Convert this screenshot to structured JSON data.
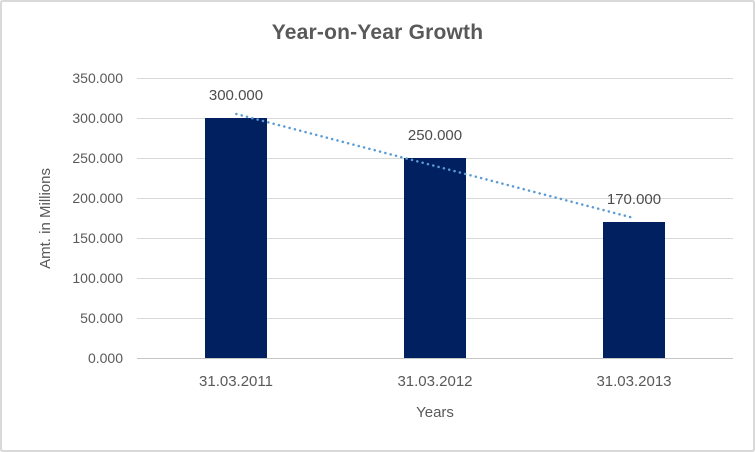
{
  "window": {
    "background": "#ffffff",
    "border_color": "#d9d9d9"
  },
  "chart_data": {
    "type": "bar",
    "title": "Year-on-Year Growth",
    "xlabel": "Years",
    "ylabel": "Amt. in Millions",
    "categories": [
      "31.03.2011",
      "31.03.2012",
      "31.03.2013"
    ],
    "series": [
      {
        "name": "Amt. in Millions",
        "values": [
          300,
          250,
          170
        ],
        "data_labels": [
          "300.000",
          "250.000",
          "170.000"
        ],
        "color": "#002060"
      }
    ],
    "y_axis": {
      "min": 0,
      "max": 350,
      "step": 50,
      "tick_labels": [
        "350.000",
        "300.000",
        "250.000",
        "200.000",
        "150.000",
        "100.000",
        "50.000",
        "0.000"
      ]
    },
    "grid": true,
    "legend": "none",
    "trendline": {
      "style": "dotted",
      "color": "#5b9bd5",
      "from_value": 305,
      "to_value": 175
    }
  },
  "colors": {
    "bar": "#002060",
    "trendline": "#5b9bd5",
    "gridline": "#d9d9d9",
    "axis_line": "#c6c6c6",
    "text": "#595959",
    "data_label": "#4d4d4d"
  }
}
